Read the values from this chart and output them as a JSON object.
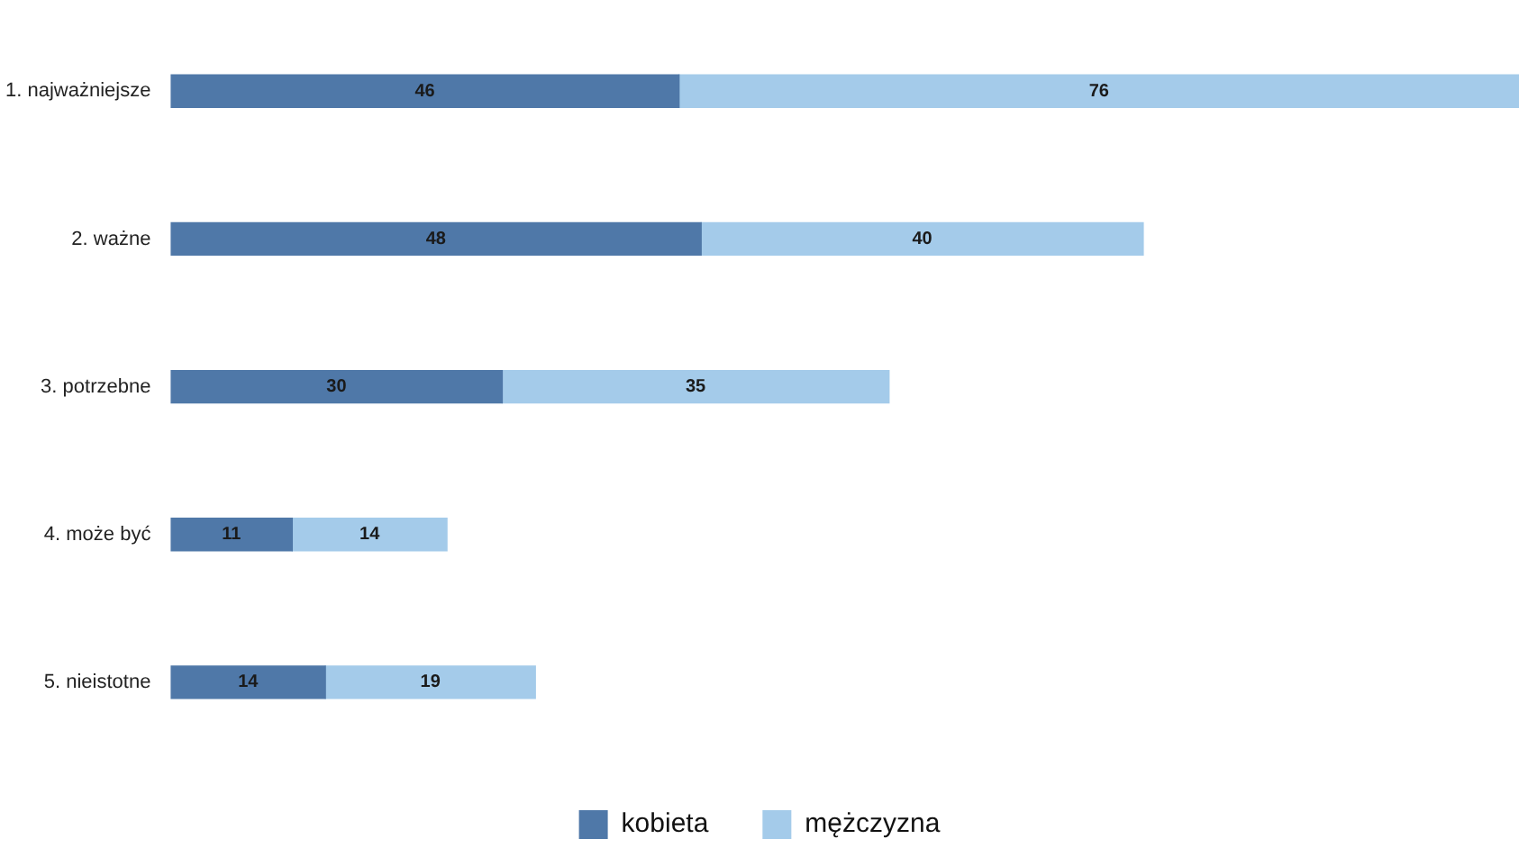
{
  "chart_data": {
    "type": "bar",
    "orientation": "horizontal",
    "stacked": true,
    "categories": [
      "1. najważniejsze",
      "2. ważne",
      "3. potrzebne",
      "4. może być",
      "5. nieistotne"
    ],
    "series": [
      {
        "name": "kobieta",
        "color": "#4f78a8",
        "values": [
          46,
          48,
          30,
          11,
          14
        ]
      },
      {
        "name": "mężczyzna",
        "color": "#a4cbea",
        "values": [
          76,
          40,
          35,
          14,
          19
        ]
      }
    ],
    "xlim": [
      0,
      122
    ],
    "tick_labels": "y",
    "legend": "bottom",
    "data_labels": true
  }
}
